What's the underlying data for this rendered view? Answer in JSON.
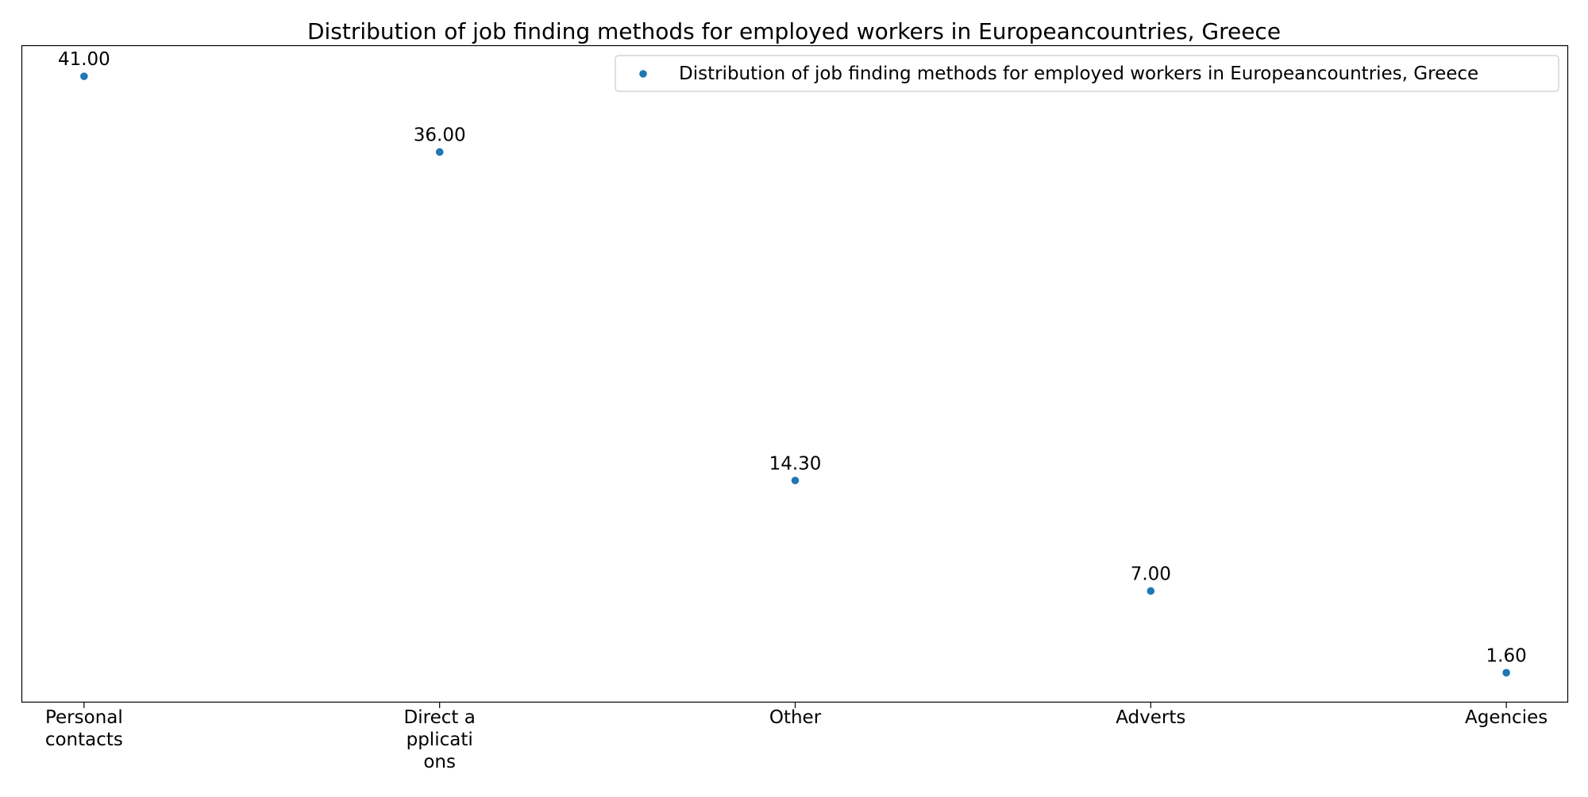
{
  "chart_data": {
    "type": "scatter",
    "title": "Distribution of job finding methods for employed workers in Europeancountries, Greece",
    "xlabel": "",
    "ylabel": "",
    "categories": [
      [
        "Personal",
        "contacts"
      ],
      [
        "Direct a",
        "pplicati",
        "ons"
      ],
      [
        "Other"
      ],
      [
        "Adverts"
      ],
      [
        "Agencies"
      ]
    ],
    "series": [
      {
        "name": "Distribution of job finding methods for employed workers in Europeancountries, Greece",
        "color": "#1f77b4",
        "values": [
          41.0,
          36.0,
          14.3,
          7.0,
          1.6
        ],
        "labels": [
          "41.00",
          "36.00",
          "14.30",
          "7.00",
          "1.60"
        ]
      }
    ],
    "ylim": [
      -0.37,
      43.0
    ],
    "y_ticks_shown": false,
    "grid": false,
    "legend": "top-right"
  }
}
